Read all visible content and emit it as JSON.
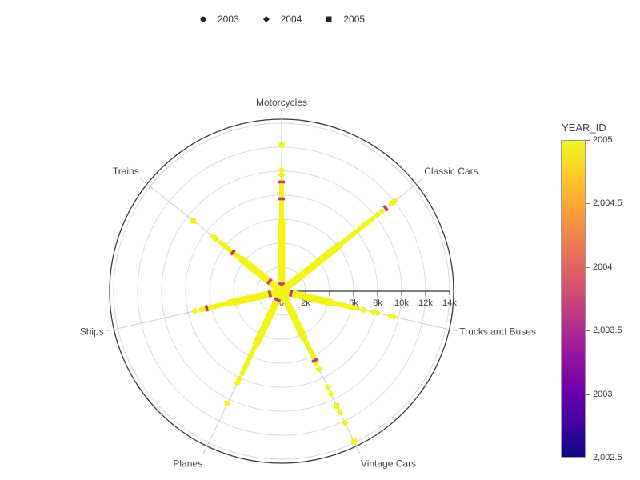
{
  "legend": {
    "items": [
      {
        "label": "2003",
        "symbol": "circle"
      },
      {
        "label": "2004",
        "symbol": "diamond"
      },
      {
        "label": "2005",
        "symbol": "square"
      }
    ]
  },
  "colorbar": {
    "title": "YEAR_ID",
    "tick_labels": [
      "2005",
      "2,004.5",
      "2004",
      "2,003.5",
      "2003",
      "2,002.5"
    ],
    "gradient_stops_bottom_to_top": [
      "#0d0887",
      "#46039f",
      "#7201a8",
      "#9c179e",
      "#bd3786",
      "#d8576b",
      "#ed7953",
      "#fb9f3a",
      "#fdca26",
      "#f0f921"
    ]
  },
  "chart_data": {
    "type": "scatter",
    "subtype": "polar-scatter",
    "radial_axis": {
      "tick_labels": [
        "0",
        "2k",
        "4k",
        "6k",
        "8k",
        "10k",
        "12k",
        "14k"
      ],
      "tick_values_k": [
        0,
        2,
        4,
        6,
        8,
        10,
        12,
        14
      ],
      "max_k": 14
    },
    "note": "Dense overlapping markers (colored by YEAR_ID, plasma scale) form thick yellow rays along each category spoke; values in thousands (k).",
    "categories": [
      {
        "label": "Motorcycles",
        "angle_deg": 90,
        "band_to_k": 9.7,
        "accents_k": [
          9.1,
          7.7,
          0.6
        ],
        "outliers": [
          {
            "r_k": 10.1,
            "symbol": "diamond"
          },
          {
            "r_k": 12.2,
            "symbol": "square"
          }
        ]
      },
      {
        "label": "Classic Cars",
        "angle_deg": 38.57,
        "band_to_k": 10.2,
        "accents_k": [
          11.1
        ],
        "outliers": [
          {
            "r_k": 10.7,
            "symbol": "diamond"
          },
          {
            "r_k": 11.7,
            "symbol": "diamond"
          },
          {
            "r_k": 12.05,
            "symbol": "diamond"
          }
        ]
      },
      {
        "label": "Trucks and Buses",
        "angle_deg": -12.86,
        "band_to_k": 7.0,
        "accents_k": [
          0.8
        ],
        "outliers": [
          {
            "r_k": 7.8,
            "symbol": "diamond"
          },
          {
            "r_k": 8.2,
            "symbol": "diamond"
          },
          {
            "r_k": 9.3,
            "symbol": "diamond"
          },
          {
            "r_k": 9.6,
            "symbol": "diamond"
          }
        ]
      },
      {
        "label": "Vintage Cars",
        "angle_deg": -64.29,
        "band_to_k": 7.2,
        "accents_k": [
          6.4
        ],
        "outliers": [
          {
            "r_k": 8.9,
            "symbol": "diamond"
          },
          {
            "r_k": 9.5,
            "symbol": "diamond"
          },
          {
            "r_k": 10.6,
            "symbol": "square"
          },
          {
            "r_k": 11.2,
            "symbol": "diamond"
          },
          {
            "r_k": 12.2,
            "symbol": "diamond"
          },
          {
            "r_k": 13.9,
            "symbol": "square"
          }
        ]
      },
      {
        "label": "Planes",
        "angle_deg": -115.71,
        "band_to_k": 8.1,
        "accents_k": [
          0.8
        ],
        "outliers": [
          {
            "r_k": 8.5,
            "symbol": "diamond"
          },
          {
            "r_k": 10.4,
            "symbol": "square"
          }
        ]
      },
      {
        "label": "Ships",
        "angle_deg": -167.14,
        "band_to_k": 7.4,
        "accents_k": [
          6.4,
          1.0
        ],
        "outliers": []
      },
      {
        "label": "Trains",
        "angle_deg": 141.43,
        "band_to_k": 7.0,
        "accents_k": [
          5.2,
          1.3
        ],
        "outliers": [
          {
            "r_k": 7.3,
            "symbol": "diamond"
          },
          {
            "r_k": 9.4,
            "symbol": "square"
          }
        ]
      }
    ],
    "colors": {
      "band": "#f2f418",
      "accent": "#c2397b",
      "grid": "#d9d9d9",
      "spoke": "#c9c9c9",
      "outer_ring": "#3b3b3b",
      "axis": "#333333",
      "tick_text": "#444444",
      "category_text": "#444444",
      "legend_marker": "#222222"
    }
  }
}
